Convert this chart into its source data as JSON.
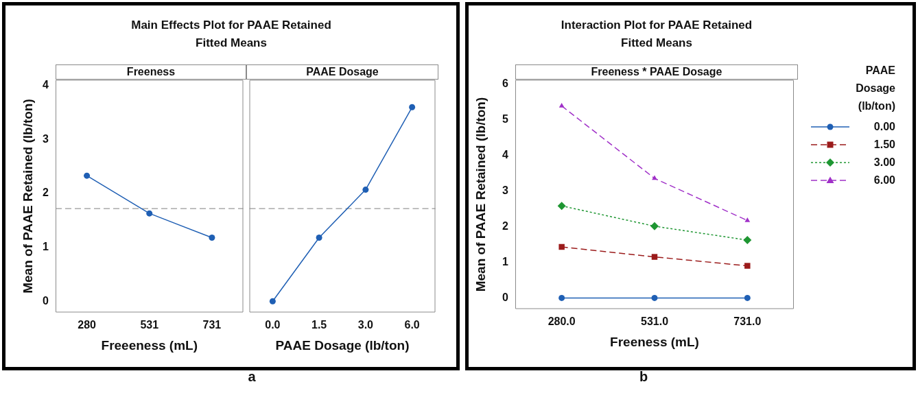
{
  "chart_data": [
    {
      "type": "line",
      "title": "Main Effects Plot for PAAE Retained",
      "subtitle": "Fitted Means",
      "xlabel": "Freeeness (mL)",
      "ylabel": "Mean of PAAE Retained (lb/ton)",
      "annotations": [
        "Freeness",
        "a"
      ],
      "categories": [
        "280",
        "531",
        "731"
      ],
      "values": [
        2.33,
        1.63,
        1.18
      ],
      "color": "#1f5fb4",
      "marker": "circle",
      "ylim": [
        -0.2,
        4.1
      ],
      "yticks": [
        0,
        1,
        2,
        3,
        4
      ],
      "ref_lines": [
        {
          "axis": "y",
          "value": 1.72,
          "color": "#999999",
          "line_style": "dashed"
        }
      ]
    },
    {
      "type": "line",
      "xlabel": "PAAE Dosage (lb/ton)",
      "annotations": [
        "PAAE Dosage"
      ],
      "categories": [
        "0.0",
        "1.5",
        "3.0",
        "6.0"
      ],
      "values": [
        0,
        1.18,
        2.07,
        3.6
      ],
      "color": "#1f5fb4",
      "marker": "circle",
      "ylim": [
        -0.2,
        4.1
      ],
      "yticks": [
        0,
        1,
        2,
        3,
        4
      ],
      "tick_labels": "x",
      "ref_lines": [
        {
          "axis": "y",
          "value": 1.72,
          "color": "#999999",
          "line_style": "dashed"
        }
      ]
    },
    {
      "type": "line",
      "title": "Interaction Plot for PAAE Retained",
      "subtitle": "Fitted Means",
      "xlabel": "Freeness (mL)",
      "ylabel": "Mean of PAAE Retained (lb/ton)",
      "legend_title": "PAAE Dosage (lb/ton)",
      "annotations": [
        "Freeness * PAAE Dosage",
        "b"
      ],
      "categories": [
        "280.0",
        "531.0",
        "731.0"
      ],
      "legend": "right",
      "ylim": [
        -0.3,
        6.1
      ],
      "yticks": [
        0,
        1,
        2,
        3,
        4,
        5,
        6
      ],
      "series": [
        {
          "name": "0.00",
          "color": "#1f5fb4",
          "marker": "circle",
          "line_style": "solid",
          "values": [
            0,
            0,
            0
          ]
        },
        {
          "name": "1.50",
          "color": "#9b1b1b",
          "marker": "square",
          "line_style": "dashed",
          "values": [
            1.43,
            1.15,
            0.9
          ]
        },
        {
          "name": "3.00",
          "color": "#1e9632",
          "marker": "diamond",
          "line_style": "dotted",
          "values": [
            2.58,
            2.01,
            1.62
          ]
        },
        {
          "name": "6.00",
          "color": "#a030c8",
          "marker": "triangle",
          "line_style": "dashed",
          "values": [
            5.38,
            3.35,
            2.17
          ]
        }
      ]
    }
  ]
}
